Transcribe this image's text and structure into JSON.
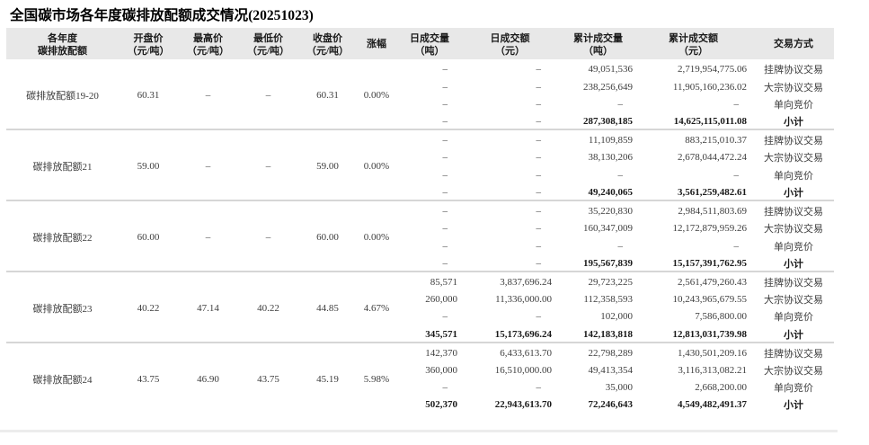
{
  "title": "全国碳市场各年度碳排放配额成交情况(20251023)",
  "table": {
    "headers": {
      "product": [
        "各年度",
        "碳排放配额"
      ],
      "open": [
        "开盘价",
        "（元/吨）"
      ],
      "high": [
        "最高价",
        "（元/吨）"
      ],
      "low": [
        "最低价",
        "（元/吨）"
      ],
      "close": [
        "收盘价",
        "（元/吨）"
      ],
      "change": [
        "涨幅"
      ],
      "daily_volume": [
        "日成交量",
        "（吨）"
      ],
      "daily_amount": [
        "日成交额",
        "（元）"
      ],
      "cum_volume": [
        "累计成交量",
        "（吨）"
      ],
      "cum_amount": [
        "累计成交额",
        "（元）"
      ],
      "trade_mode": [
        "交易方式"
      ]
    },
    "groups": [
      {
        "product": "碳排放配额19-20",
        "open": "60.31",
        "high": "–",
        "low": "–",
        "close": "60.31",
        "change": "0.00%",
        "rows": [
          {
            "daily_volume": "–",
            "daily_amount": "–",
            "cum_volume": "49,051,536",
            "cum_amount": "2,719,954,775.06",
            "trade_mode": "挂牌协议交易",
            "subtotal": false
          },
          {
            "daily_volume": "–",
            "daily_amount": "–",
            "cum_volume": "238,256,649",
            "cum_amount": "11,905,160,236.02",
            "trade_mode": "大宗协议交易",
            "subtotal": false
          },
          {
            "daily_volume": "–",
            "daily_amount": "–",
            "cum_volume": "–",
            "cum_amount": "–",
            "trade_mode": "单向竞价",
            "subtotal": false
          },
          {
            "daily_volume": "–",
            "daily_amount": "–",
            "cum_volume": "287,308,185",
            "cum_amount": "14,625,115,011.08",
            "trade_mode": "小计",
            "subtotal": true
          }
        ]
      },
      {
        "product": "碳排放配额21",
        "open": "59.00",
        "high": "–",
        "low": "–",
        "close": "59.00",
        "change": "0.00%",
        "rows": [
          {
            "daily_volume": "–",
            "daily_amount": "–",
            "cum_volume": "11,109,859",
            "cum_amount": "883,215,010.37",
            "trade_mode": "挂牌协议交易",
            "subtotal": false
          },
          {
            "daily_volume": "–",
            "daily_amount": "–",
            "cum_volume": "38,130,206",
            "cum_amount": "2,678,044,472.24",
            "trade_mode": "大宗协议交易",
            "subtotal": false
          },
          {
            "daily_volume": "–",
            "daily_amount": "–",
            "cum_volume": "–",
            "cum_amount": "–",
            "trade_mode": "单向竞价",
            "subtotal": false
          },
          {
            "daily_volume": "–",
            "daily_amount": "–",
            "cum_volume": "49,240,065",
            "cum_amount": "3,561,259,482.61",
            "trade_mode": "小计",
            "subtotal": true
          }
        ]
      },
      {
        "product": "碳排放配额22",
        "open": "60.00",
        "high": "–",
        "low": "–",
        "close": "60.00",
        "change": "0.00%",
        "rows": [
          {
            "daily_volume": "–",
            "daily_amount": "–",
            "cum_volume": "35,220,830",
            "cum_amount": "2,984,511,803.69",
            "trade_mode": "挂牌协议交易",
            "subtotal": false
          },
          {
            "daily_volume": "–",
            "daily_amount": "–",
            "cum_volume": "160,347,009",
            "cum_amount": "12,172,879,959.26",
            "trade_mode": "大宗协议交易",
            "subtotal": false
          },
          {
            "daily_volume": "–",
            "daily_amount": "–",
            "cum_volume": "–",
            "cum_amount": "–",
            "trade_mode": "单向竞价",
            "subtotal": false
          },
          {
            "daily_volume": "–",
            "daily_amount": "–",
            "cum_volume": "195,567,839",
            "cum_amount": "15,157,391,762.95",
            "trade_mode": "小计",
            "subtotal": true
          }
        ]
      },
      {
        "product": "碳排放配额23",
        "open": "40.22",
        "high": "47.14",
        "low": "40.22",
        "close": "44.85",
        "change": "4.67%",
        "rows": [
          {
            "daily_volume": "85,571",
            "daily_amount": "3,837,696.24",
            "cum_volume": "29,723,225",
            "cum_amount": "2,561,479,260.43",
            "trade_mode": "挂牌协议交易",
            "subtotal": false
          },
          {
            "daily_volume": "260,000",
            "daily_amount": "11,336,000.00",
            "cum_volume": "112,358,593",
            "cum_amount": "10,243,965,679.55",
            "trade_mode": "大宗协议交易",
            "subtotal": false
          },
          {
            "daily_volume": "–",
            "daily_amount": "–",
            "cum_volume": "102,000",
            "cum_amount": "7,586,800.00",
            "trade_mode": "单向竞价",
            "subtotal": false
          },
          {
            "daily_volume": "345,571",
            "daily_amount": "15,173,696.24",
            "cum_volume": "142,183,818",
            "cum_amount": "12,813,031,739.98",
            "trade_mode": "小计",
            "subtotal": true
          }
        ]
      },
      {
        "product": "碳排放配额24",
        "open": "43.75",
        "high": "46.90",
        "low": "43.75",
        "close": "45.19",
        "change": "5.98%",
        "rows": [
          {
            "daily_volume": "142,370",
            "daily_amount": "6,433,613.70",
            "cum_volume": "22,798,289",
            "cum_amount": "1,430,501,209.16",
            "trade_mode": "挂牌协议交易",
            "subtotal": false
          },
          {
            "daily_volume": "360,000",
            "daily_amount": "16,510,000.00",
            "cum_volume": "49,413,354",
            "cum_amount": "3,116,313,082.21",
            "trade_mode": "大宗协议交易",
            "subtotal": false
          },
          {
            "daily_volume": "–",
            "daily_amount": "–",
            "cum_volume": "35,000",
            "cum_amount": "2,668,200.00",
            "trade_mode": "单向竞价",
            "subtotal": false
          },
          {
            "daily_volume": "502,370",
            "daily_amount": "22,943,613.70",
            "cum_volume": "72,246,643",
            "cum_amount": "4,549,482,491.37",
            "trade_mode": "小计",
            "subtotal": true
          }
        ]
      }
    ]
  }
}
